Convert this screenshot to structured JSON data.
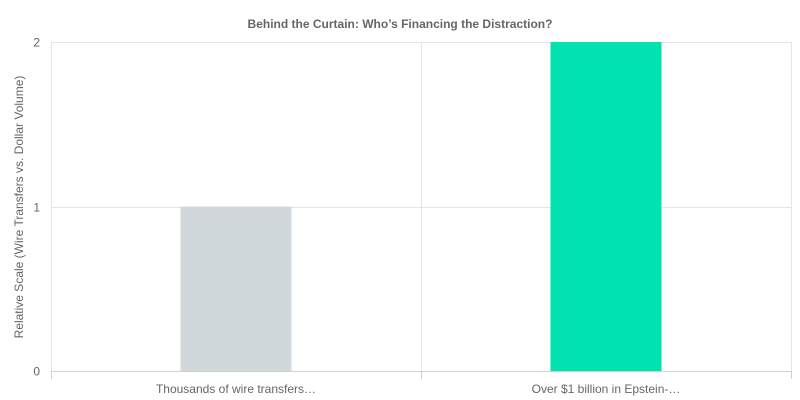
{
  "chart_data": {
    "type": "bar",
    "title": "Behind the Curtain: Who’s Financing the Distraction?",
    "xlabel": "",
    "ylabel": "Relative Scale (Wire Transfers vs. Dollar Volume)",
    "categories": [
      "Thousands of wire transfers…",
      "Over $1 billion in Epstein-…"
    ],
    "values": [
      1,
      2
    ],
    "colors": [
      "#d1d8dc",
      "#00e3b0"
    ],
    "ylim": [
      0,
      2
    ],
    "yticks": [
      0,
      1,
      2
    ],
    "grid": true,
    "legend": "none"
  }
}
